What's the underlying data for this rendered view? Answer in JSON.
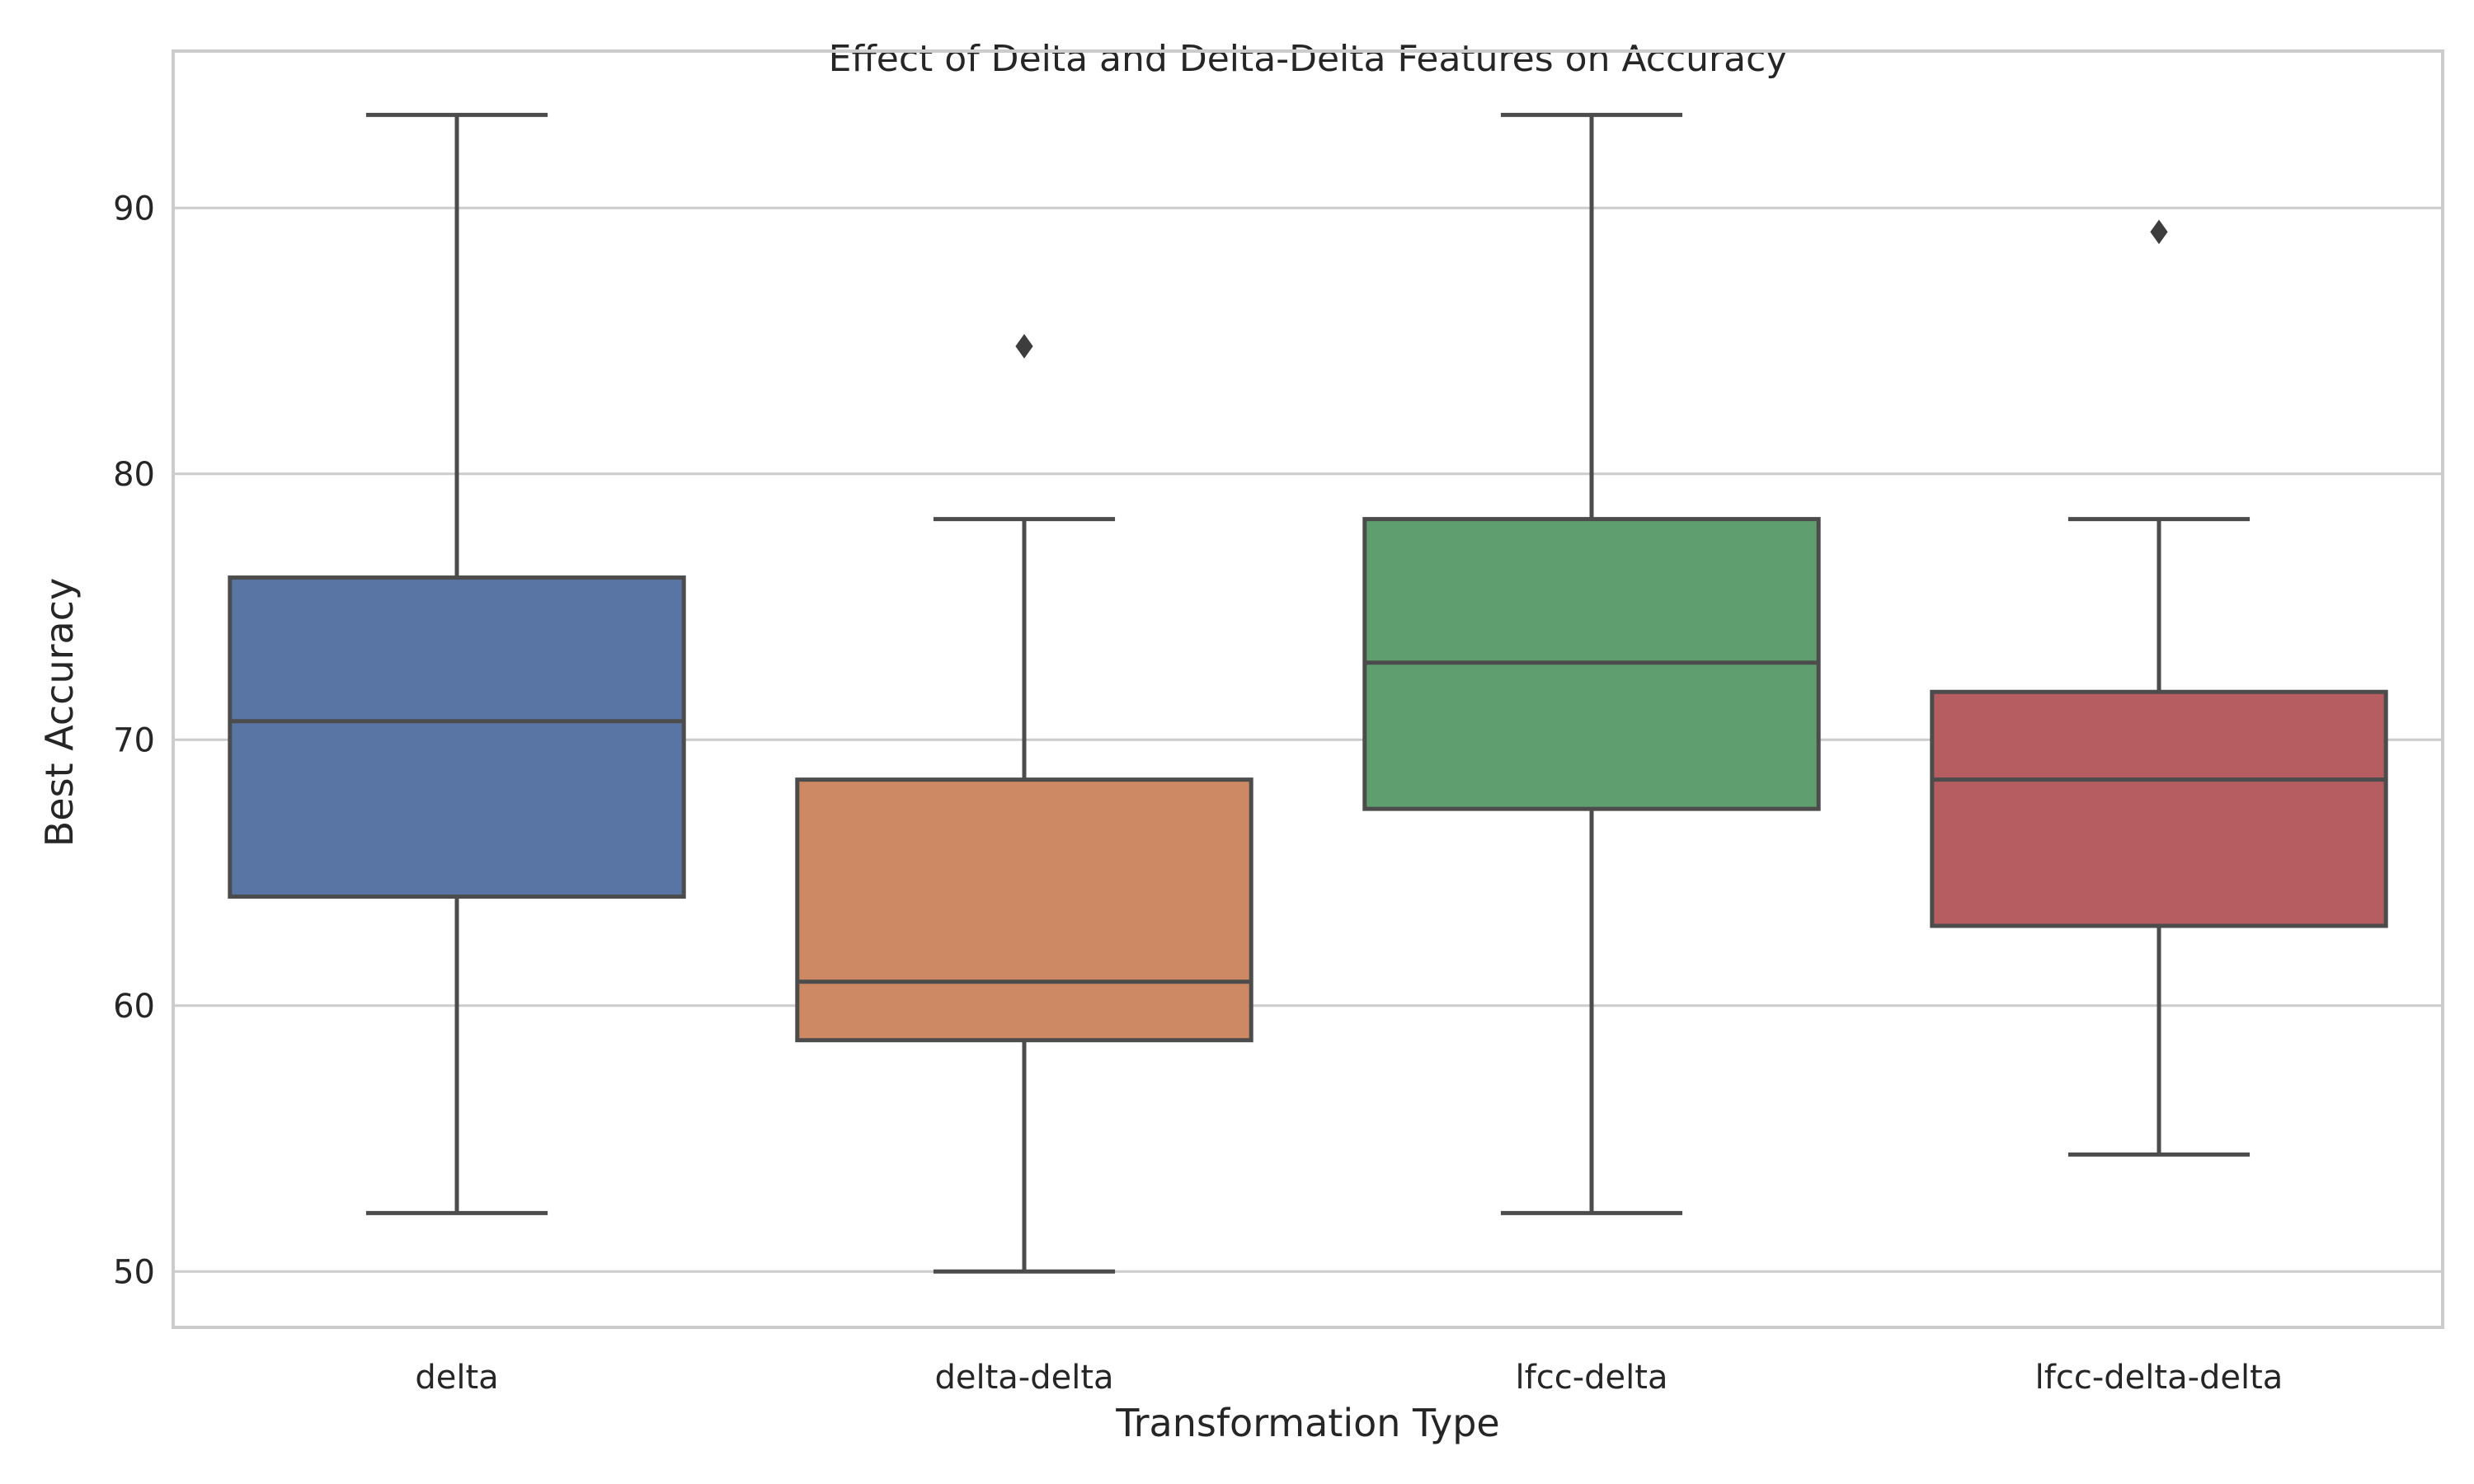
{
  "chart_data": {
    "type": "box",
    "title": "Effect of Delta and Delta-Delta Features on Accuracy",
    "xlabel": "Transformation Type",
    "ylabel": "Best Accuracy",
    "ylim": [
      47.9,
      95.9
    ],
    "yticks": [
      50,
      60,
      70,
      80,
      90
    ],
    "grid": true,
    "legend": "none",
    "categories": [
      "delta",
      "delta-delta",
      "lfcc-delta",
      "lfcc-delta-delta"
    ],
    "boxes": [
      {
        "category": "delta",
        "whisker_low": 52.2,
        "q1": 64.1,
        "median": 70.7,
        "q3": 76.1,
        "whisker_high": 93.5,
        "outliers": [],
        "color": "#5975a4"
      },
      {
        "category": "delta-delta",
        "whisker_low": 50.0,
        "q1": 58.7,
        "median": 60.9,
        "q3": 68.5,
        "whisker_high": 78.3,
        "outliers": [
          84.8
        ],
        "color": "#cc8963"
      },
      {
        "category": "lfcc-delta",
        "whisker_low": 52.2,
        "q1": 67.4,
        "median": 72.9,
        "q3": 78.3,
        "whisker_high": 93.5,
        "outliers": [],
        "color": "#5f9e6e"
      },
      {
        "category": "lfcc-delta-delta",
        "whisker_low": 54.4,
        "q1": 63.0,
        "median": 68.5,
        "q3": 71.8,
        "whisker_high": 78.3,
        "outliers": [
          89.1
        ],
        "color": "#b55d60"
      }
    ]
  }
}
